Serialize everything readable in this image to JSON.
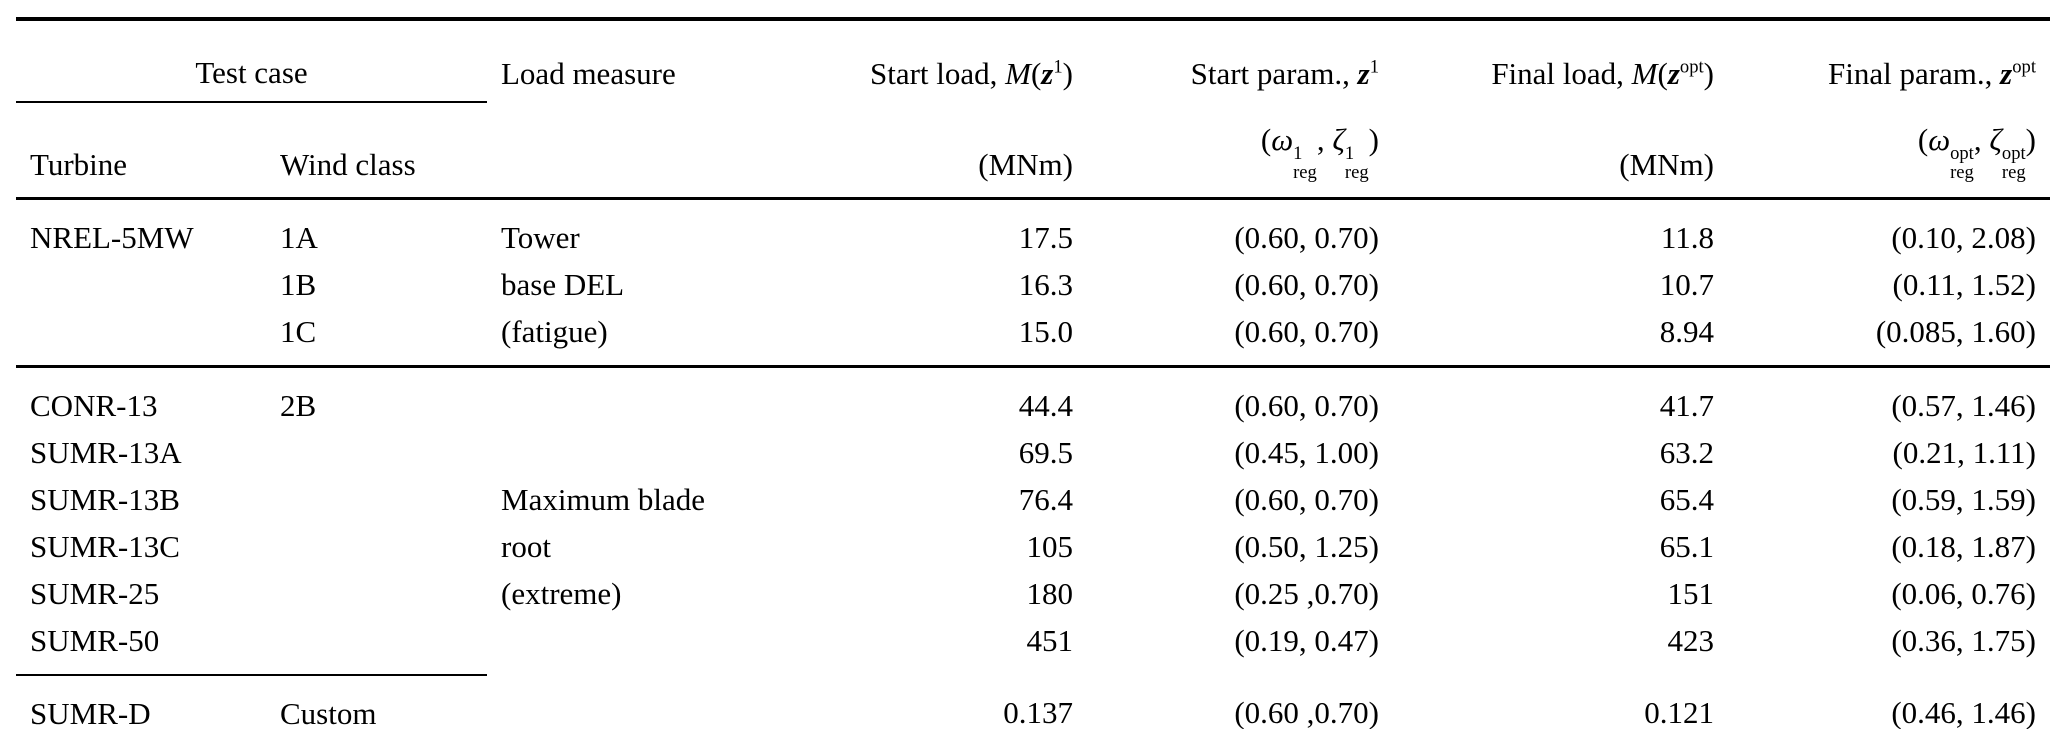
{
  "page": {
    "background_color": "#ffffff",
    "text_color": "#000000"
  },
  "table": {
    "header": {
      "test_case_group_label": "Test case",
      "turbine_label": "Turbine",
      "wind_class_label": "Wind class",
      "load_measure_label": "Load measure",
      "start_load": {
        "prefix": "Start load, ",
        "m": "M",
        "open_paren": "(",
        "z": "z",
        "sup": "1",
        "close_paren": ")",
        "unit": "(MNm)"
      },
      "start_param": {
        "prefix": "Start param., ",
        "z": "z",
        "sup": "1",
        "unit": {
          "open": "(",
          "omega": "ω",
          "omega_sup": "1",
          "omega_sub": "reg",
          "comma": ", ",
          "zeta": "ζ",
          "zeta_sup": "1",
          "zeta_sub": "reg",
          "close": ")"
        }
      },
      "final_load": {
        "prefix": "Final load, ",
        "m": "M",
        "open_paren": "(",
        "z": "z",
        "sup": "opt",
        "close_paren": ")",
        "unit": "(MNm)"
      },
      "final_param": {
        "prefix": "Final param., ",
        "z": "z",
        "sup": "opt",
        "unit": {
          "open": "(",
          "omega": "ω",
          "omega_sup": "opt",
          "omega_sub": "reg",
          "comma": ", ",
          "zeta": "ζ",
          "zeta_sup": "opt",
          "zeta_sub": "reg",
          "close": ")"
        }
      }
    },
    "row_blocks": [
      {
        "separator_after": "full",
        "rows": [
          {
            "turbine": "NREL-5MW",
            "wind_class": "1A",
            "load_measure": "Tower",
            "start_load": "17.5",
            "start_param": "(0.60, 0.70)",
            "final_load": "11.8",
            "final_param": "(0.10, 2.08)"
          },
          {
            "turbine": "",
            "wind_class": "1B",
            "load_measure": "base DEL",
            "start_load": "16.3",
            "start_param": "(0.60, 0.70)",
            "final_load": "10.7",
            "final_param": "(0.11, 1.52)"
          },
          {
            "turbine": "",
            "wind_class": "1C",
            "load_measure": "(fatigue)",
            "start_load": "15.0",
            "start_param": "(0.60, 0.70)",
            "final_load": "8.94",
            "final_param": "(0.085, 1.60)"
          }
        ]
      },
      {
        "separator_after": "partial",
        "rows": [
          {
            "turbine": "CONR-13",
            "wind_class": "2B",
            "load_measure": "",
            "start_load": "44.4",
            "start_param": "(0.60, 0.70)",
            "final_load": "41.7",
            "final_param": "(0.57, 1.46)"
          },
          {
            "turbine": "SUMR-13A",
            "wind_class": "",
            "load_measure": "",
            "start_load": "69.5",
            "start_param": "(0.45, 1.00)",
            "final_load": "63.2",
            "final_param": "(0.21, 1.11)"
          },
          {
            "turbine": "SUMR-13B",
            "wind_class": "",
            "load_measure": "Maximum blade",
            "start_load": "76.4",
            "start_param": "(0.60, 0.70)",
            "final_load": "65.4",
            "final_param": "(0.59, 1.59)"
          },
          {
            "turbine": "SUMR-13C",
            "wind_class": "",
            "load_measure": "root",
            "start_load": "105",
            "start_param": "(0.50, 1.25)",
            "final_load": "65.1",
            "final_param": "(0.18, 1.87)"
          },
          {
            "turbine": "SUMR-25",
            "wind_class": "",
            "load_measure": "(extreme)",
            "start_load": "180",
            "start_param": "(0.25 ,0.70)",
            "final_load": "151",
            "final_param": "(0.06, 0.76)"
          },
          {
            "turbine": "SUMR-50",
            "wind_class": "",
            "load_measure": "",
            "start_load": "451",
            "start_param": "(0.19, 0.47)",
            "final_load": "423",
            "final_param": "(0.36, 1.75)"
          }
        ]
      },
      {
        "separator_after": "none",
        "rows": [
          {
            "turbine": "SUMR-D",
            "wind_class": "Custom",
            "load_measure": "",
            "start_load": "0.137",
            "start_param": "(0.60 ,0.70)",
            "final_load": "0.121",
            "final_param": "(0.46, 1.46)"
          }
        ]
      }
    ]
  }
}
